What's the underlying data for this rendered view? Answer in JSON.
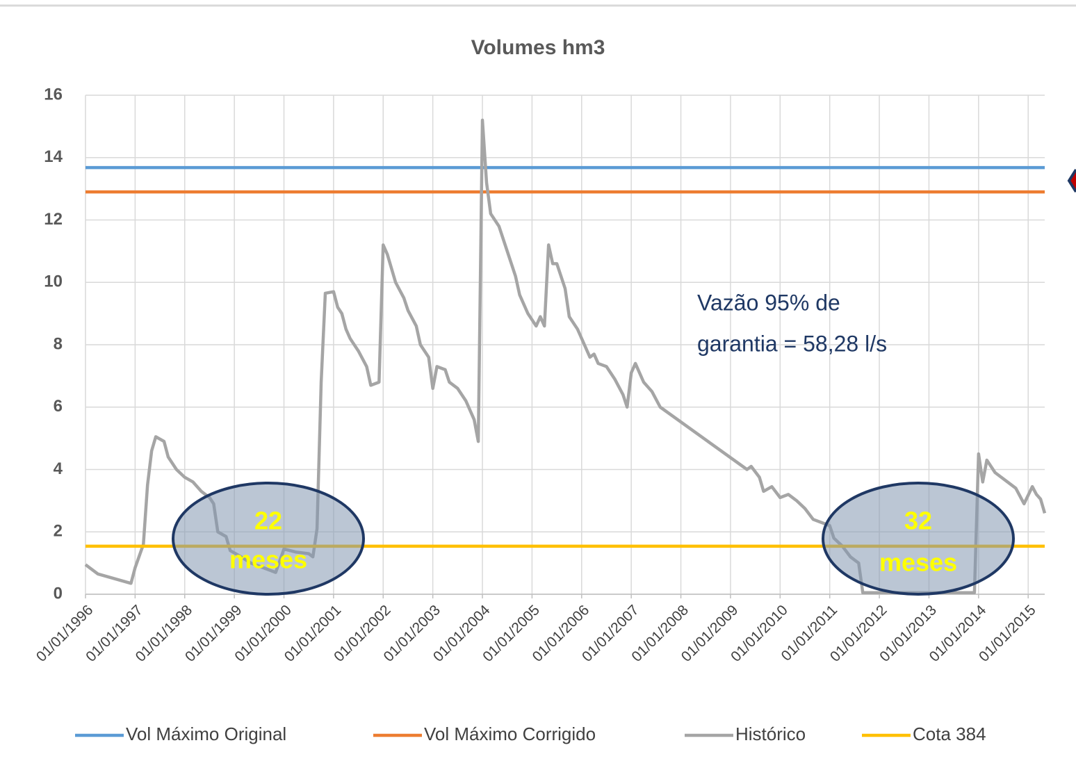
{
  "chart_data": {
    "type": "line",
    "title": "Volumes hm3",
    "xlim": [
      "01/01/1996",
      "01/05/2015"
    ],
    "xticks": [
      "01/01/1996",
      "01/01/1997",
      "01/01/1998",
      "01/01/1999",
      "01/01/2000",
      "01/01/2001",
      "01/01/2002",
      "01/01/2003",
      "01/01/2004",
      "01/01/2005",
      "01/01/2006",
      "01/01/2007",
      "01/01/2008",
      "01/01/2009",
      "01/01/2010",
      "01/01/2011",
      "01/01/2012",
      "01/01/2013",
      "01/01/2014",
      "01/01/2015"
    ],
    "ylim": [
      0,
      16
    ],
    "yticks": [
      0,
      2,
      4,
      6,
      8,
      10,
      12,
      14,
      16
    ],
    "grid": true,
    "legend": "bottom",
    "series": [
      {
        "name": "Vol Máximo Original",
        "color": "#5b9bd5",
        "x": [
          "01/01/1996",
          "01/05/2015"
        ],
        "values": [
          13.68,
          13.68
        ]
      },
      {
        "name": "Vol Máximo Corrigido",
        "color": "#ed7d31",
        "x": [
          "01/01/1996",
          "01/05/2015"
        ],
        "values": [
          12.9,
          12.9
        ]
      },
      {
        "name": "Histórico",
        "color": "#a5a5a5",
        "x": [
          "01/01/1996",
          "01/04/1996",
          "01/08/1996",
          "01/12/1996",
          "01/01/1997",
          "01/03/1997",
          "01/04/1997",
          "01/05/1997",
          "01/06/1997",
          "01/08/1997",
          "01/09/1997",
          "01/11/1997",
          "01/01/1998",
          "01/03/1998",
          "01/05/1998",
          "01/07/1998",
          "01/08/1998",
          "01/09/1998",
          "01/11/1998",
          "01/12/1998",
          "01/02/1999",
          "01/05/1999",
          "01/08/1999",
          "01/11/1999",
          "01/01/2000",
          "01/04/2000",
          "01/07/2000",
          "01/08/2000",
          "01/09/2000",
          "01/10/2000",
          "01/11/2000",
          "01/01/2001",
          "01/02/2001",
          "01/03/2001",
          "01/04/2001",
          "01/05/2001",
          "01/07/2001",
          "01/09/2001",
          "01/10/2001",
          "01/12/2001",
          "01/01/2002",
          "01/02/2002",
          "01/04/2002",
          "01/06/2002",
          "01/07/2002",
          "01/09/2002",
          "01/10/2002",
          "01/12/2002",
          "01/01/2003",
          "01/02/2003",
          "01/04/2003",
          "01/05/2003",
          "01/07/2003",
          "01/09/2003",
          "01/11/2003",
          "01/12/2003",
          "01/01/2004",
          "01/02/2004",
          "01/03/2004",
          "01/05/2004",
          "01/07/2004",
          "01/09/2004",
          "01/10/2004",
          "01/12/2004",
          "01/02/2005",
          "01/03/2005",
          "01/04/2005",
          "01/05/2005",
          "01/06/2005",
          "01/07/2005",
          "01/09/2005",
          "01/10/2005",
          "01/12/2005",
          "01/01/2006",
          "01/03/2006",
          "01/04/2006",
          "01/05/2006",
          "01/07/2006",
          "01/09/2006",
          "01/11/2006",
          "01/12/2006",
          "01/01/2007",
          "01/02/2007",
          "01/04/2007",
          "01/06/2007",
          "01/08/2007",
          "01/05/2009",
          "01/06/2009",
          "01/08/2009",
          "01/09/2009",
          "01/11/2009",
          "01/01/2010",
          "01/03/2010",
          "01/05/2010",
          "01/07/2010",
          "01/09/2010",
          "01/12/2010",
          "01/01/2011",
          "01/02/2011",
          "01/04/2011",
          "01/06/2011",
          "01/08/2011",
          "01/09/2011",
          "01/12/2013",
          "01/01/2014",
          "01/02/2014",
          "01/03/2014",
          "01/05/2014",
          "01/08/2014",
          "01/10/2014",
          "01/12/2014",
          "01/02/2015",
          "01/03/2015",
          "01/04/2015",
          "01/05/2015"
        ],
        "values": [
          0.95,
          0.65,
          0.5,
          0.35,
          0.85,
          1.6,
          3.5,
          4.6,
          5.05,
          4.9,
          4.4,
          4.0,
          3.75,
          3.6,
          3.3,
          3.1,
          2.9,
          2.0,
          1.85,
          1.4,
          1.25,
          1.0,
          0.85,
          0.7,
          1.45,
          1.35,
          1.3,
          1.2,
          2.1,
          6.8,
          9.65,
          9.7,
          9.2,
          9.0,
          8.5,
          8.2,
          7.8,
          7.3,
          6.7,
          6.8,
          11.2,
          10.9,
          10.0,
          9.5,
          9.1,
          8.6,
          8.0,
          7.6,
          6.6,
          7.3,
          7.2,
          6.8,
          6.6,
          6.2,
          5.6,
          4.9,
          15.2,
          13.2,
          12.2,
          11.8,
          11.0,
          10.2,
          9.6,
          9.0,
          8.6,
          8.9,
          8.6,
          11.2,
          10.6,
          10.6,
          9.8,
          8.9,
          8.5,
          8.2,
          7.6,
          7.7,
          7.4,
          7.3,
          6.9,
          6.4,
          6.0,
          7.1,
          7.4,
          6.8,
          6.5,
          6.0,
          4.0,
          4.1,
          3.75,
          3.3,
          3.45,
          3.1,
          3.2,
          3.0,
          2.75,
          2.4,
          2.25,
          2.2,
          1.8,
          1.55,
          1.2,
          1.0,
          0.05,
          0.05,
          4.5,
          3.6,
          4.3,
          3.9,
          3.6,
          3.4,
          2.9,
          3.45,
          3.2,
          3.05,
          2.6
        ]
      },
      {
        "name": "Cota 384",
        "color": "#ffc000",
        "x": [
          "01/01/1996",
          "01/05/2015"
        ],
        "values": [
          1.54,
          1.54
        ]
      }
    ],
    "annotations": [
      {
        "lines": [
          "Vazão 95% de",
          "garantia = 58,28 l/s"
        ]
      },
      {
        "lines": [
          "22",
          "meses"
        ]
      },
      {
        "lines": [
          "32",
          "meses"
        ]
      }
    ]
  }
}
